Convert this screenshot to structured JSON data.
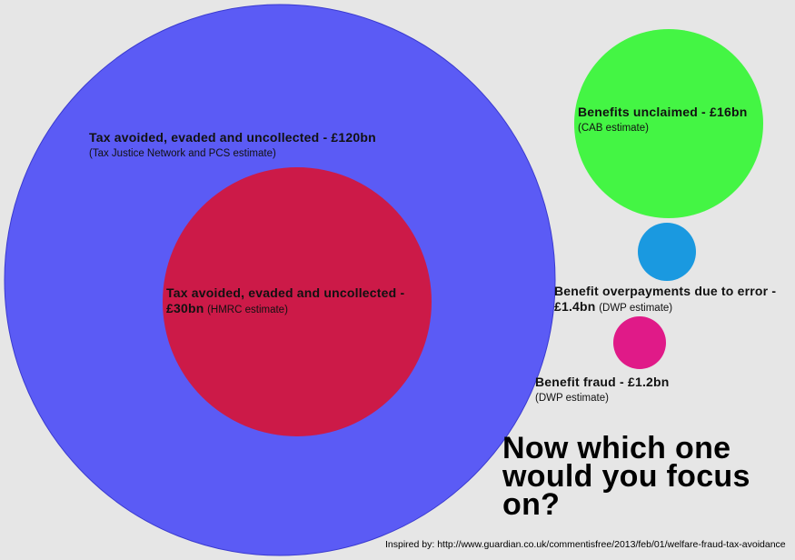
{
  "circles": [
    {
      "id": "tax-hmrc-outer",
      "color": "#5b5bf5"
    },
    {
      "id": "tax-hmrc-inner",
      "color": "#cc1a48"
    },
    {
      "id": "benefits-unclaimed",
      "color": "#44f544"
    },
    {
      "id": "benefit-overpayments",
      "color": "#1a99e0"
    },
    {
      "id": "benefit-fraud",
      "color": "#e01a88"
    }
  ],
  "labels": {
    "tax_120": {
      "title": "Tax avoided, evaded and uncollected - £120bn",
      "note": "(Tax Justice Network and PCS estimate)"
    },
    "tax_30": {
      "title_line1": "Tax avoided, evaded and uncollected -",
      "title_line2": "£30bn",
      "note": "(HMRC estimate)"
    },
    "unclaimed": {
      "title": "Benefits unclaimed - £16bn",
      "note": "(CAB estimate)"
    },
    "overpay": {
      "title_line1": "Benefit overpayments due to error -",
      "title_line2": "£1.4bn",
      "note": "(DWP estimate)"
    },
    "fraud": {
      "title": "Benefit fraud - £1.2bn",
      "note": "(DWP estimate)"
    }
  },
  "headline": {
    "line1": "Now which one",
    "line2": "would you focus",
    "line3": "on?"
  },
  "footer": {
    "text": "Inspired by: http://www.guardian.co.uk/commentisfree/2013/feb/01/welfare-fraud-tax-avoidance"
  }
}
